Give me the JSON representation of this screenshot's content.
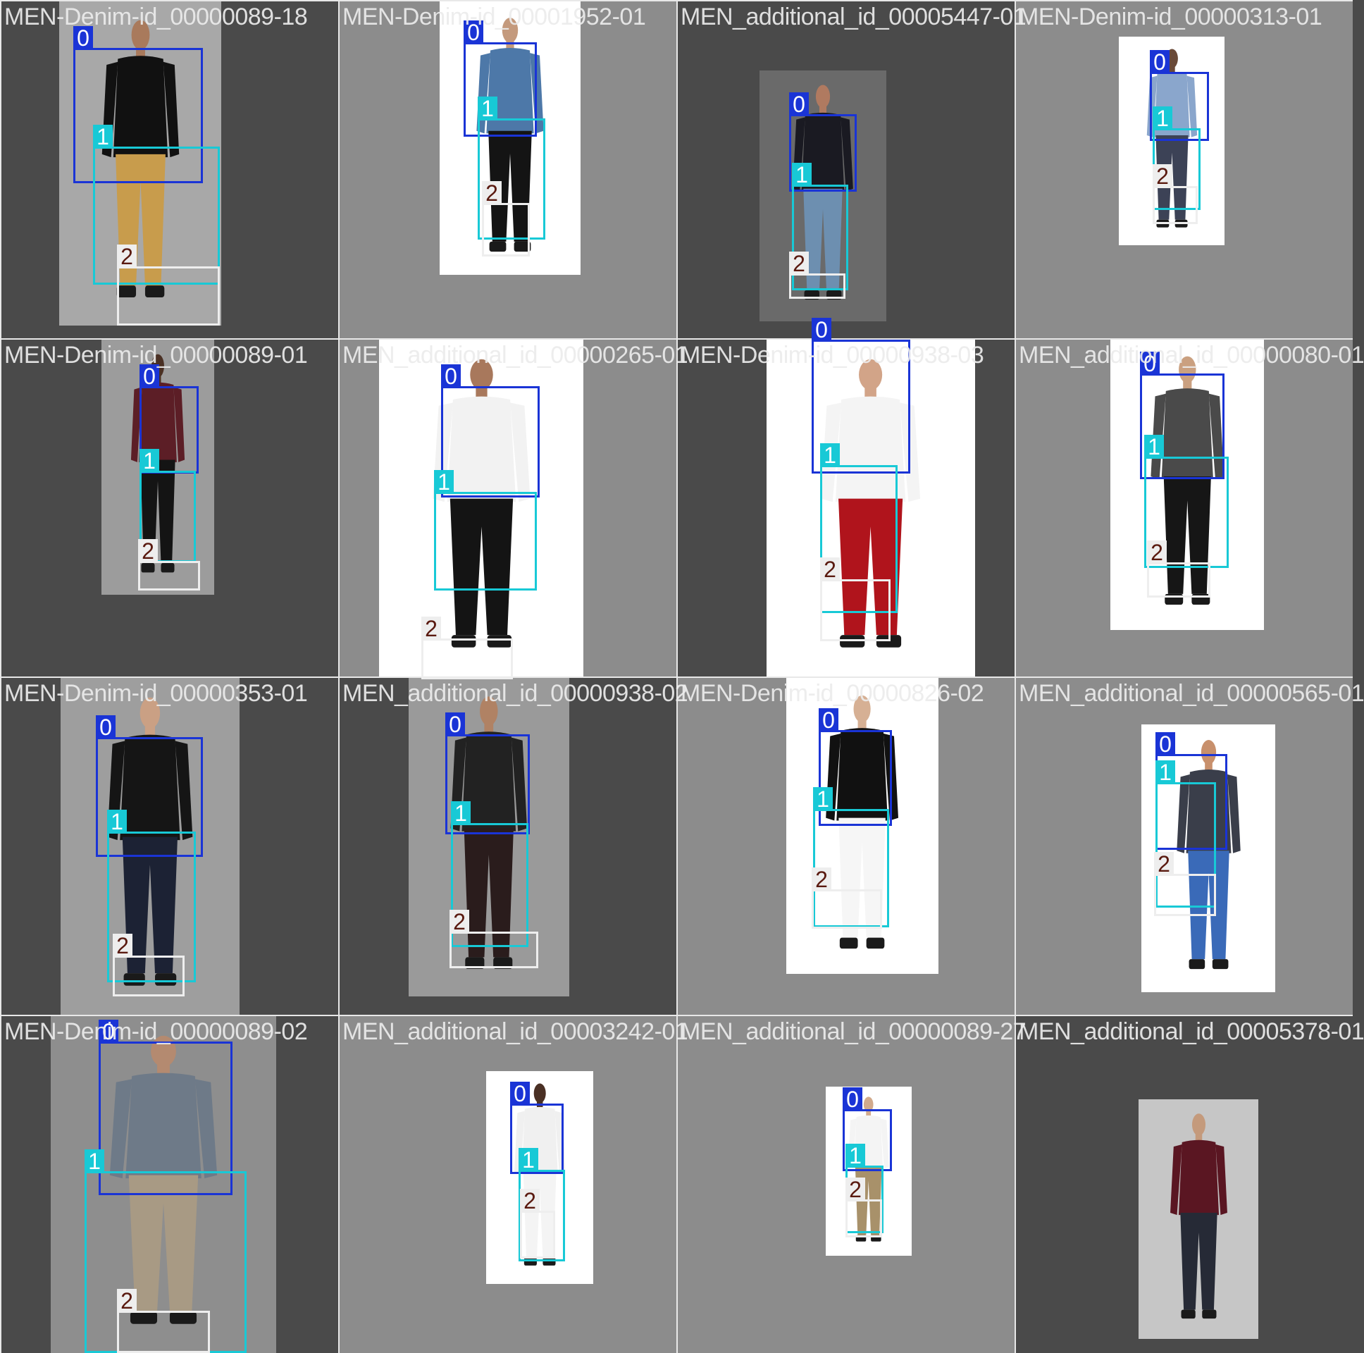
{
  "palette": {
    "tile_dark": "#4a4a4a",
    "tile_mid": "#8c8c8c",
    "class_0": "#1a34d6",
    "class_1": "#18c9d6",
    "class_2": "#eeeeee",
    "class_2_text": "#5a1a10"
  },
  "tiles": [
    {
      "title": "MEN-Denim-id_00000089-18",
      "bg": "dark",
      "photo_bg": "#a8a8a8",
      "top": "#111111",
      "bottom": "#c89c4c",
      "skin": "#a97a5c",
      "boxes": [
        {
          "label": "0",
          "cls": 0
        },
        {
          "label": "1",
          "cls": 1
        },
        {
          "label": "2",
          "cls": 2
        }
      ]
    },
    {
      "title": "MEN-Denim-id_00001952-01",
      "bg": "mid",
      "photo_bg": "#ffffff",
      "top": "#4d78a8",
      "bottom": "#141414",
      "skin": "#c49a7d",
      "boxes": [
        {
          "label": "0",
          "cls": 0
        },
        {
          "label": "1",
          "cls": 1
        },
        {
          "label": "2",
          "cls": 2
        }
      ]
    },
    {
      "title": "MEN_additional_id_00005447-01",
      "bg": "dark",
      "photo_bg": "#6a6a6a",
      "top": "#1a1a22",
      "bottom": "#6d8fb0",
      "skin": "#b07a60",
      "boxes": [
        {
          "label": "0",
          "cls": 0
        },
        {
          "label": "1",
          "cls": 1
        },
        {
          "label": "2",
          "cls": 2
        }
      ]
    },
    {
      "title": "MEN-Denim-id_00000313-01",
      "bg": "mid",
      "photo_bg": "#ffffff",
      "top": "#8aa6cc",
      "bottom": "#3c4256",
      "skin": "#6a4a38",
      "boxes": [
        {
          "label": "0",
          "cls": 0
        },
        {
          "label": "1",
          "cls": 1
        },
        {
          "label": "2",
          "cls": 2
        }
      ]
    },
    {
      "title": "MEN-Denim-id_00000089-01",
      "bg": "dark",
      "photo_bg": "#9c9c9c",
      "top": "#5c1e26",
      "bottom": "#141414",
      "skin": "#4a3024",
      "boxes": [
        {
          "label": "0",
          "cls": 0
        },
        {
          "label": "1",
          "cls": 1
        },
        {
          "label": "2",
          "cls": 2
        }
      ]
    },
    {
      "title": "MEN_additional_id_00000265-01",
      "bg": "mid",
      "photo_bg": "#ffffff",
      "top": "#f2f2f2",
      "bottom": "#141414",
      "skin": "#a8785c",
      "boxes": [
        {
          "label": "0",
          "cls": 0
        },
        {
          "label": "1",
          "cls": 1
        },
        {
          "label": "2",
          "cls": 2
        }
      ]
    },
    {
      "title": "MEN-Denim-id_00000938-03",
      "bg": "dark",
      "photo_bg": "#ffffff",
      "top": "#f4f4f4",
      "bottom": "#b0141c",
      "skin": "#d2a488",
      "boxes": [
        {
          "label": "0",
          "cls": 0
        },
        {
          "label": "1",
          "cls": 1
        },
        {
          "label": "2",
          "cls": 2
        }
      ]
    },
    {
      "title": "MEN_additional_id_00000080-01",
      "bg": "mid",
      "photo_bg": "#ffffff",
      "top": "#4a4a4a",
      "bottom": "#161616",
      "skin": "#caa080",
      "boxes": [
        {
          "label": "0",
          "cls": 0
        },
        {
          "label": "1",
          "cls": 1
        },
        {
          "label": "2",
          "cls": 2
        }
      ]
    },
    {
      "title": "MEN-Denim-id_00000353-01",
      "bg": "dark",
      "photo_bg": "#9e9e9e",
      "top": "#151515",
      "bottom": "#1c2234",
      "skin": "#caa084",
      "boxes": [
        {
          "label": "0",
          "cls": 0
        },
        {
          "label": "1",
          "cls": 1
        },
        {
          "label": "2",
          "cls": 2
        }
      ]
    },
    {
      "title": "MEN_additional_id_00000938-02",
      "bg": "dark",
      "photo_bg": "#9a9a9a",
      "top": "#222222",
      "bottom": "#2a1c1c",
      "skin": "#b08264",
      "boxes": [
        {
          "label": "0",
          "cls": 0
        },
        {
          "label": "1",
          "cls": 1
        },
        {
          "label": "2",
          "cls": 2
        }
      ]
    },
    {
      "title": "MEN-Denim-id_00000826-02",
      "bg": "mid",
      "photo_bg": "#ffffff",
      "top": "#111111",
      "bottom": "#f6f6f6",
      "skin": "#d6b094",
      "boxes": [
        {
          "label": "0",
          "cls": 0
        },
        {
          "label": "1",
          "cls": 1
        },
        {
          "label": "2",
          "cls": 2
        }
      ]
    },
    {
      "title": "MEN_additional_id_00000565-01",
      "bg": "mid",
      "photo_bg": "#ffffff",
      "top": "#3a3e4a",
      "bottom": "#3a6ab8",
      "skin": "#c8906c",
      "boxes": [
        {
          "label": "0",
          "cls": 0
        },
        {
          "label": "1",
          "cls": 1
        },
        {
          "label": "2",
          "cls": 2
        }
      ]
    },
    {
      "title": "MEN-Denim-id_00000089-02",
      "bg": "dark",
      "photo_bg": "#8e8e8e",
      "top": "#6e7a88",
      "bottom": "#a89a84",
      "skin": "#b48a70",
      "boxes": [
        {
          "label": "0",
          "cls": 0
        },
        {
          "label": "1",
          "cls": 1
        },
        {
          "label": "2",
          "cls": 2
        }
      ]
    },
    {
      "title": "MEN_additional_id_00003242-01",
      "bg": "mid",
      "photo_bg": "#ffffff",
      "top": "#f0f0f0",
      "bottom": "#f4f4f4",
      "skin": "#4a3024",
      "boxes": [
        {
          "label": "0",
          "cls": 0
        },
        {
          "label": "1",
          "cls": 1
        },
        {
          "label": "2",
          "cls": 2
        }
      ]
    },
    {
      "title": "MEN_additional_id_00000089-27",
      "bg": "mid",
      "photo_bg": "#ffffff",
      "top": "#f4f4f4",
      "bottom": "#a8916a",
      "skin": "#d2aa8c",
      "boxes": [
        {
          "label": "0",
          "cls": 0
        },
        {
          "label": "1",
          "cls": 1
        },
        {
          "label": "2",
          "cls": 2
        }
      ]
    },
    {
      "title": "MEN_additional_id_00005378-01",
      "bg": "dark",
      "photo_bg": "#c6c6c6",
      "top": "#5a1622",
      "bottom": "#262a36",
      "skin": "#c49a7c",
      "boxes": []
    }
  ]
}
